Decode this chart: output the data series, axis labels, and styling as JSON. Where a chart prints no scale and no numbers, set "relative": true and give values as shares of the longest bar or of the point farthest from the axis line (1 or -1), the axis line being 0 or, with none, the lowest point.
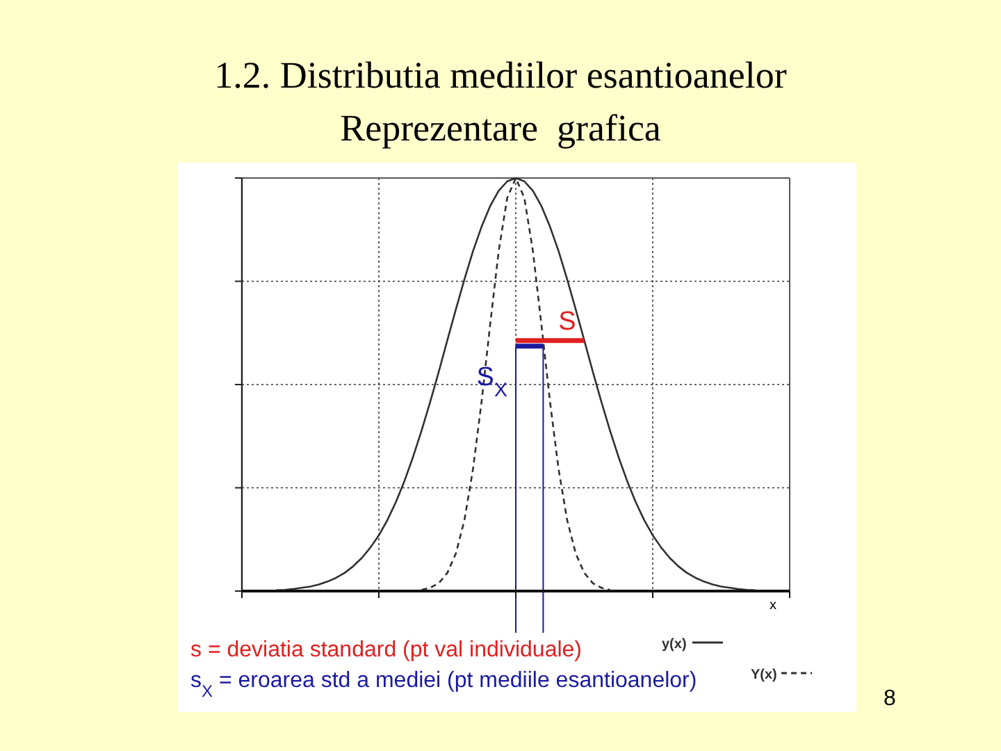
{
  "chart_data": {
    "type": "line",
    "title": "1.2. Distributia mediilor esantioanelor",
    "subtitle": "Reprezentare  grafica",
    "xlabel": "x",
    "relative": true,
    "grid": true,
    "legend": "bottom",
    "categories": [
      null,
      null,
      null,
      null,
      null,
      null,
      null,
      null,
      null,
      null,
      null,
      null,
      null,
      null,
      null,
      null,
      null,
      null,
      null,
      null,
      null,
      null,
      null,
      null,
      null,
      null,
      null,
      null,
      null,
      null,
      null,
      null,
      null,
      null,
      null,
      null,
      null,
      null,
      null,
      null,
      null,
      null,
      null,
      null,
      null,
      null,
      null,
      null,
      null,
      null,
      null,
      null,
      null,
      null,
      null,
      null,
      null,
      null,
      null,
      null,
      null,
      null,
      null,
      null,
      null
    ],
    "annotations": [
      "S",
      "S$_{X}$",
      "s = deviatia standard (pt val individuale)",
      "s$_{X}$ = eroarea std a mediei (pt mediile esantioanelor)",
      "8"
    ],
    "series": [
      {
        "name": "y(x)",
        "color": "#303030",
        "line_style": "solid",
        "values": [
          null,
          null,
          null,
          null,
          0.002,
          0.003,
          0.005,
          0.008,
          0.011,
          0.016,
          0.023,
          0.032,
          0.044,
          0.06,
          0.08,
          0.105,
          0.135,
          0.172,
          0.216,
          0.267,
          0.325,
          0.389,
          0.458,
          0.531,
          0.607,
          0.682,
          0.755,
          0.823,
          0.882,
          0.932,
          0.969,
          0.992,
          1,
          0.992,
          0.969,
          0.932,
          0.882,
          0.823,
          0.755,
          0.682,
          0.607,
          0.531,
          0.458,
          0.389,
          0.325,
          0.267,
          0.216,
          0.172,
          0.135,
          0.105,
          0.08,
          0.06,
          0.044,
          0.032,
          0.023,
          0.016,
          0.011,
          0.008,
          0.005,
          0.003,
          0.002,
          null,
          null,
          null,
          null
        ]
      },
      {
        "name": "Y(x)",
        "color": "#303030",
        "line_style": "dashed",
        "values": [
          null,
          null,
          null,
          null,
          null,
          null,
          null,
          null,
          null,
          null,
          null,
          null,
          null,
          null,
          null,
          null,
          null,
          null,
          null,
          null,
          null,
          0.003,
          0.008,
          0.019,
          0.044,
          0.091,
          0.172,
          0.295,
          0.458,
          0.644,
          0.823,
          0.952,
          1,
          0.952,
          0.823,
          0.644,
          0.458,
          0.295,
          0.172,
          0.091,
          0.044,
          0.019,
          0.008,
          0.003,
          null,
          null,
          null,
          null,
          null,
          null,
          null,
          null,
          null,
          null,
          null,
          null,
          null,
          null,
          null,
          null,
          null,
          null,
          null,
          null,
          null
        ]
      }
    ]
  }
}
